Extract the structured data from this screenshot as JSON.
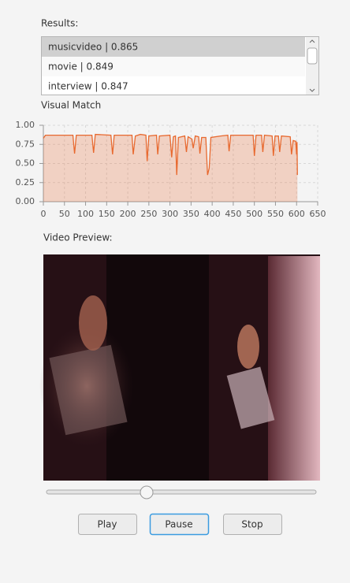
{
  "results_label": "Results:",
  "results": [
    "musicvideo | 0.865",
    "movie | 0.849",
    "interview | 0.847"
  ],
  "chart_data": {
    "type": "area",
    "title": "Visual Match",
    "x": [
      0,
      5,
      70,
      74,
      78,
      115,
      119,
      123,
      160,
      164,
      168,
      210,
      213,
      218,
      230,
      243,
      246,
      250,
      268,
      271,
      275,
      300,
      304,
      308,
      313,
      316,
      320,
      335,
      339,
      343,
      352,
      355,
      360,
      368,
      371,
      375,
      385,
      389,
      393,
      397,
      420,
      437,
      440,
      444,
      497,
      500,
      504,
      517,
      520,
      524,
      542,
      545,
      549,
      557,
      560,
      564,
      585,
      588,
      592,
      598,
      600,
      601,
      602
    ],
    "values": [
      0.83,
      0.87,
      0.87,
      0.63,
      0.87,
      0.87,
      0.64,
      0.88,
      0.87,
      0.62,
      0.87,
      0.87,
      0.62,
      0.86,
      0.88,
      0.87,
      0.53,
      0.86,
      0.87,
      0.62,
      0.86,
      0.87,
      0.58,
      0.85,
      0.86,
      0.35,
      0.84,
      0.86,
      0.65,
      0.85,
      0.82,
      0.7,
      0.86,
      0.85,
      0.63,
      0.84,
      0.84,
      0.35,
      0.44,
      0.84,
      0.86,
      0.87,
      0.66,
      0.87,
      0.87,
      0.6,
      0.87,
      0.87,
      0.65,
      0.87,
      0.86,
      0.6,
      0.86,
      0.86,
      0.65,
      0.86,
      0.85,
      0.62,
      0.8,
      0.79,
      0.62,
      0.78,
      0.35
    ],
    "color": "#e8692f",
    "xlim": [
      0,
      650
    ],
    "ylim": [
      0,
      1
    ],
    "xticks": [
      0,
      50,
      100,
      150,
      200,
      250,
      300,
      350,
      400,
      450,
      500,
      550,
      600,
      650
    ],
    "yticks": [
      {
        "value": 0,
        "label": "0.00"
      },
      {
        "value": 0.25,
        "label": "0.25"
      },
      {
        "value": 0.5,
        "label": "0.50"
      },
      {
        "value": 0.75,
        "label": "0.75"
      },
      {
        "value": 1,
        "label": "1.00"
      }
    ],
    "grid": true
  },
  "preview_label": "Video Preview:",
  "buttons": [
    "Play",
    "Pause",
    "Stop"
  ]
}
